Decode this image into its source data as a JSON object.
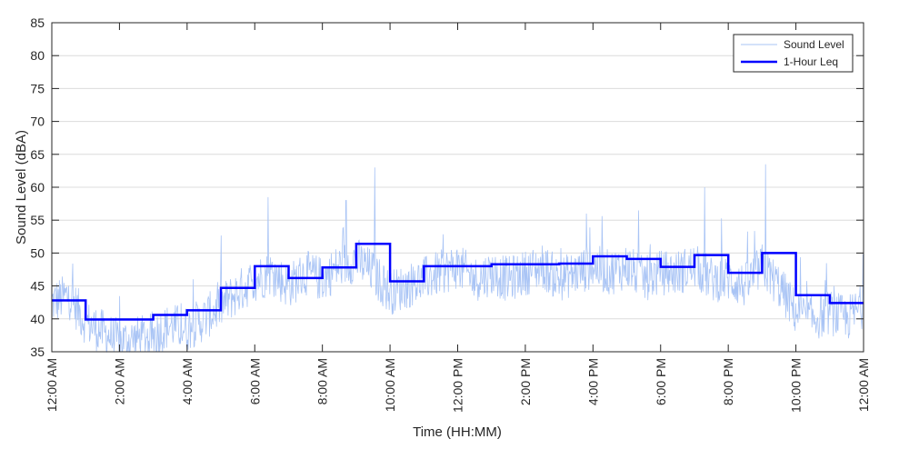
{
  "chart_data": {
    "type": "line",
    "title": "",
    "xlabel": "Time (HH:MM)",
    "ylabel": "Sound Level (dBA)",
    "xlim": [
      0,
      24
    ],
    "ylim": [
      35,
      85
    ],
    "x_ticks": [
      0,
      2,
      4,
      6,
      8,
      10,
      12,
      14,
      16,
      18,
      20,
      22,
      24
    ],
    "x_tick_labels": [
      "12:00 AM",
      "2:00 AM",
      "4:00 AM",
      "6:00 AM",
      "8:00 AM",
      "10:00 AM",
      "12:00 PM",
      "2:00 PM",
      "4:00 PM",
      "6:00 PM",
      "8:00 PM",
      "10:00 PM",
      "12:00 AM"
    ],
    "y_ticks": [
      35,
      40,
      45,
      50,
      55,
      60,
      65,
      70,
      75,
      80,
      85
    ],
    "grid": "horizontal",
    "legend_position": "top-right",
    "colors": {
      "sound_level": "#a9c4f5",
      "leq": "#0000ff",
      "grid": "#dcdcdc",
      "axis": "#262626"
    },
    "series": [
      {
        "name": "Sound Level",
        "style": "thin",
        "x": [
          0,
          0.5,
          1,
          1.5,
          2,
          2.5,
          3,
          3.5,
          4,
          4.5,
          5,
          5.5,
          6,
          6.5,
          7,
          7.5,
          8,
          8.5,
          9,
          9.5,
          10,
          10.5,
          11,
          11.5,
          12,
          12.5,
          13,
          13.5,
          14,
          14.5,
          15,
          15.5,
          16,
          16.5,
          17,
          17.5,
          18,
          18.5,
          19,
          19.5,
          20,
          20.5,
          21,
          21.5,
          22,
          22.5,
          23,
          23.5,
          24
        ],
        "y": [
          42.5,
          43.5,
          39.5,
          38,
          36.5,
          37,
          37.5,
          39,
          38.5,
          40,
          42,
          44,
          46,
          47,
          45,
          47,
          46,
          48,
          49,
          47,
          44,
          45,
          46,
          47,
          48,
          46,
          47,
          46,
          47,
          48,
          46,
          47,
          48,
          47,
          48,
          46,
          47,
          47,
          48,
          46,
          46,
          45,
          48,
          45,
          41,
          40,
          41,
          40,
          42
        ],
        "peaks": [
          [
            9.55,
            63
          ],
          [
            21.1,
            63.5
          ],
          [
            8.7,
            58
          ],
          [
            6.4,
            58.5
          ],
          [
            19.3,
            60
          ],
          [
            15.8,
            56
          ]
        ]
      },
      {
        "name": "1-Hour Leq",
        "style": "step",
        "x": [
          0,
          1,
          2,
          3,
          4,
          5,
          6,
          7,
          8,
          9,
          10,
          11,
          12,
          13,
          14,
          15,
          16,
          17,
          18,
          19,
          20,
          21,
          22,
          23
        ],
        "y": [
          42.8,
          39.9,
          39.9,
          40.6,
          41.3,
          44.7,
          48.0,
          46.2,
          47.8,
          51.4,
          45.7,
          48.0,
          48.0,
          48.3,
          48.3,
          48.4,
          49.5,
          49.1,
          47.9,
          49.7,
          47.0,
          50.0,
          43.6,
          42.4
        ]
      }
    ]
  }
}
